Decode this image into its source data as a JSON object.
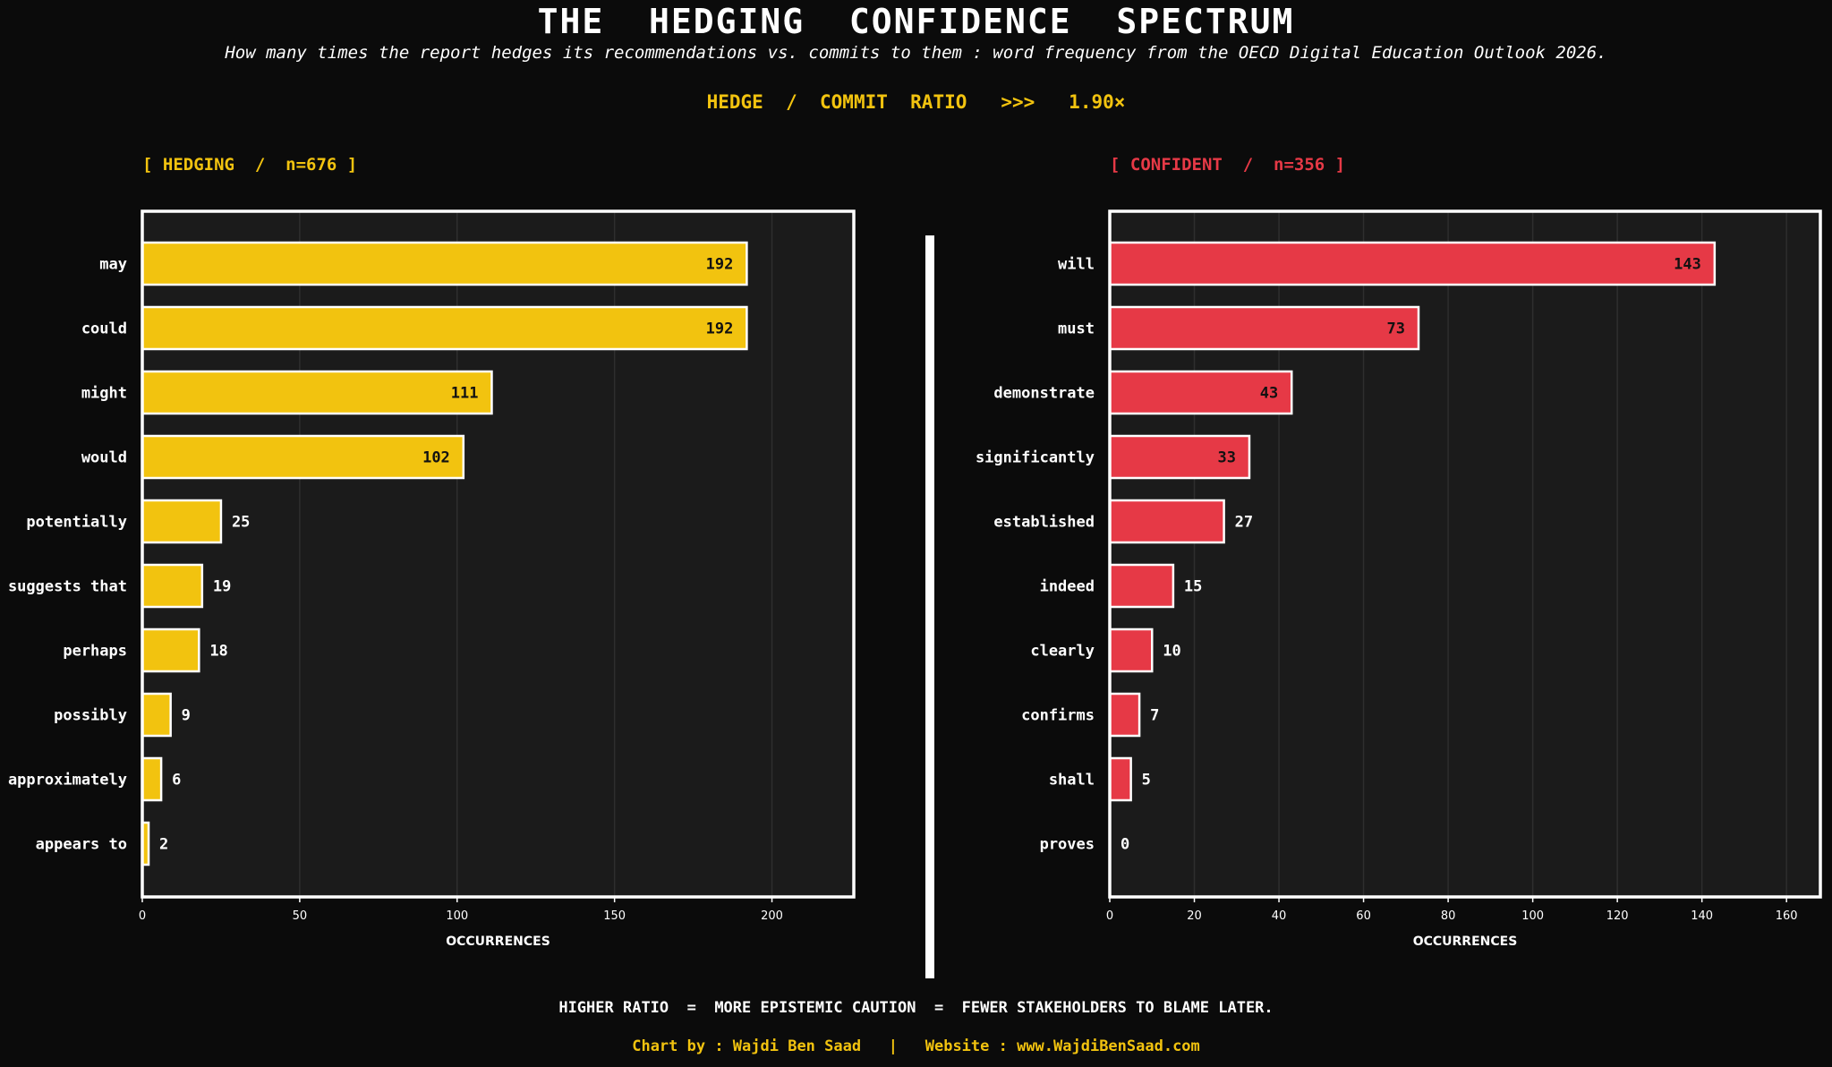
{
  "header": {
    "title": "THE  HEDGING  CONFIDENCE  SPECTRUM",
    "subtitle": "How many times the report hedges its recommendations vs. commits to them : word frequency from the OECD Digital Education Outlook 2026.",
    "ratio": "HEDGE  /  COMMIT  RATIO   >>>   1.90×"
  },
  "chart_data": [
    {
      "type": "bar",
      "orientation": "horizontal",
      "panel_label": "[ HEDGING  /  n=676 ]",
      "categories": [
        "may",
        "could",
        "might",
        "would",
        "potentially",
        "suggests that",
        "perhaps",
        "possibly",
        "approximately",
        "appears to"
      ],
      "values": [
        192,
        192,
        111,
        102,
        25,
        19,
        18,
        9,
        6,
        2
      ],
      "xlabel": "OCCURRENCES",
      "xlim": [
        0,
        226
      ],
      "xticks": [
        0,
        50,
        100,
        150,
        200
      ],
      "color": "#f2c30f",
      "grid": "vertical"
    },
    {
      "type": "bar",
      "orientation": "horizontal",
      "panel_label": "[ CONFIDENT  /  n=356 ]",
      "categories": [
        "will",
        "must",
        "demonstrate",
        "significantly",
        "established",
        "indeed",
        "clearly",
        "confirms",
        "shall",
        "proves"
      ],
      "values": [
        143,
        73,
        43,
        33,
        27,
        15,
        10,
        7,
        5,
        0
      ],
      "xlabel": "OCCURRENCES",
      "xlim": [
        0,
        168
      ],
      "xticks": [
        0,
        20,
        40,
        60,
        80,
        100,
        120,
        140,
        160
      ],
      "color": "#e63946",
      "grid": "vertical"
    }
  ],
  "footer": {
    "note": "HIGHER RATIO  =  MORE EPISTEMIC CAUTION  =  FEWER STAKEHOLDERS TO BLAME LATER.",
    "credit": "Chart by : Wajdi Ben Saad   |   Website : www.WajdiBenSaad.com"
  }
}
